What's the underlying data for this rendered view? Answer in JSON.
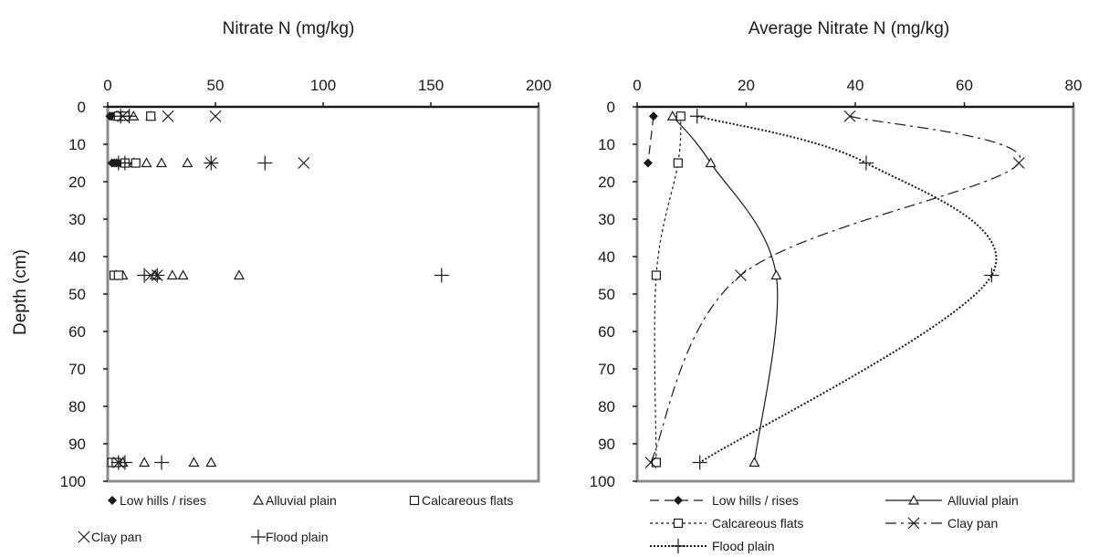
{
  "chart_data": [
    {
      "type": "scatter",
      "title": "Nitrate N (mg/kg)",
      "xlabel": "",
      "ylabel": "Depth (cm)",
      "xlim": [
        0,
        200
      ],
      "ylim": [
        0,
        100
      ],
      "y_inverted": true,
      "x_axis_position": "top",
      "x_ticks": [
        0,
        50,
        100,
        150,
        200
      ],
      "y_ticks": [
        0,
        10,
        20,
        30,
        40,
        50,
        60,
        70,
        80,
        90,
        100
      ],
      "legend_position": "bottom",
      "series": [
        {
          "name": "Low hills / rises",
          "marker": "diamond",
          "points": [
            [
              1,
              2.5
            ],
            [
              2,
              2.5
            ],
            [
              3,
              2.5
            ],
            [
              4,
              2.5
            ],
            [
              5,
              2.5
            ],
            [
              6,
              2.5
            ],
            [
              2,
              15
            ],
            [
              3,
              15
            ],
            [
              4,
              15
            ],
            [
              5,
              15
            ],
            [
              2,
              95
            ],
            [
              3,
              95
            ],
            [
              4,
              95
            ]
          ]
        },
        {
          "name": "Alluvial plain",
          "marker": "triangle",
          "points": [
            [
              4,
              2.5
            ],
            [
              7,
              2.5
            ],
            [
              12,
              2.5
            ],
            [
              20,
              2.5
            ],
            [
              8,
              15
            ],
            [
              12,
              15
            ],
            [
              18,
              15
            ],
            [
              25,
              15
            ],
            [
              37,
              15
            ],
            [
              4,
              45
            ],
            [
              7,
              45
            ],
            [
              22,
              45
            ],
            [
              30,
              45
            ],
            [
              35,
              45
            ],
            [
              61,
              45
            ],
            [
              7,
              95
            ],
            [
              17,
              95
            ],
            [
              40,
              95
            ],
            [
              48,
              95
            ]
          ]
        },
        {
          "name": "Calcareous flats",
          "marker": "square",
          "points": [
            [
              5,
              2.5
            ],
            [
              8,
              2.5
            ],
            [
              20,
              2.5
            ],
            [
              8,
              15
            ],
            [
              13,
              15
            ],
            [
              3,
              45
            ],
            [
              5,
              45
            ],
            [
              2,
              95
            ],
            [
              4,
              95
            ]
          ]
        },
        {
          "name": "Clay pan",
          "marker": "x",
          "points": [
            [
              7,
              2.5
            ],
            [
              28,
              2.5
            ],
            [
              50,
              2.5
            ],
            [
              48,
              15
            ],
            [
              91,
              15
            ],
            [
              20,
              45
            ],
            [
              23,
              45
            ],
            [
              5,
              95
            ]
          ]
        },
        {
          "name": "Flood plain",
          "marker": "plus",
          "points": [
            [
              6,
              2.5
            ],
            [
              10,
              2.5
            ],
            [
              5,
              15
            ],
            [
              8,
              15
            ],
            [
              48,
              15
            ],
            [
              73,
              15
            ],
            [
              17,
              45
            ],
            [
              23,
              45
            ],
            [
              155,
              45
            ],
            [
              5,
              95
            ],
            [
              8,
              95
            ],
            [
              25,
              95
            ]
          ]
        }
      ]
    },
    {
      "type": "line",
      "title": "Average Nitrate N (mg/kg)",
      "xlabel": "",
      "ylabel": "",
      "xlim": [
        0,
        80
      ],
      "ylim": [
        0,
        100
      ],
      "y_inverted": true,
      "x_axis_position": "top",
      "x_ticks": [
        0,
        20,
        40,
        60,
        80
      ],
      "y_ticks": [
        0,
        10,
        20,
        30,
        40,
        50,
        60,
        70,
        80,
        90,
        100
      ],
      "legend_position": "bottom",
      "series": [
        {
          "name": "Low hills / rises",
          "marker": "diamond",
          "line": "dash",
          "points": [
            [
              3,
              2.5
            ],
            [
              2,
              15
            ]
          ]
        },
        {
          "name": "Alluvial plain",
          "marker": "triangle",
          "line": "solid",
          "points": [
            [
              6.5,
              2.5
            ],
            [
              13.5,
              15
            ],
            [
              25.5,
              45
            ],
            [
              21.5,
              95
            ]
          ]
        },
        {
          "name": "Calcareous flats",
          "marker": "square",
          "line": "dot",
          "points": [
            [
              8,
              2.5
            ],
            [
              7.5,
              15
            ],
            [
              3.5,
              45
            ],
            [
              3.5,
              95
            ]
          ]
        },
        {
          "name": "Clay pan",
          "marker": "x",
          "line": "dashdot",
          "points": [
            [
              39,
              2.5
            ],
            [
              70,
              15
            ],
            [
              19,
              45
            ],
            [
              2.5,
              95
            ]
          ]
        },
        {
          "name": "Flood plain",
          "marker": "plus",
          "line": "densedot",
          "points": [
            [
              11,
              2.5
            ],
            [
              42,
              15
            ],
            [
              65,
              45
            ],
            [
              11.5,
              95
            ]
          ]
        }
      ]
    }
  ]
}
